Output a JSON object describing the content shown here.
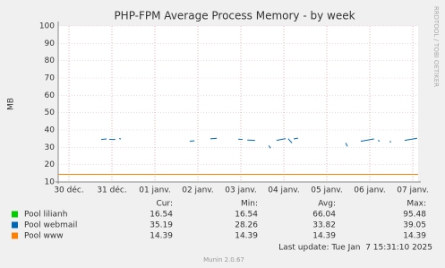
{
  "chart_data": {
    "type": "line",
    "title": "PHP-FPM Average Process Memory - by week",
    "y_label": "MB",
    "side_label": "RRDTOOL / TOBI OETIKER",
    "x": [
      -0.25,
      0.75,
      0.875,
      0.9,
      0.94,
      1.08,
      1.12,
      1.17,
      1.21,
      2.0,
      2.81,
      2.92,
      3.1,
      3.29,
      3.44,
      3.7,
      3.94,
      4.04,
      4.1,
      4.15,
      4.33,
      4.5,
      4.65,
      4.69,
      4.75,
      4.83,
      5.04,
      5.07,
      5.1,
      5.19,
      5.21,
      5.23,
      5.33,
      6.0,
      6.44,
      6.48,
      6.6,
      6.79,
      7.1,
      7.15,
      7.19,
      7.23,
      7.35,
      7.46,
      7.5,
      7.65,
      7.81,
      8.1,
      8.125
    ],
    "series": [
      {
        "name": "Pool lilianh",
        "color": "#00cc00",
        "values": [
          null,
          null,
          null,
          null,
          null,
          null,
          null,
          null,
          null,
          null,
          null,
          null,
          null,
          null,
          null,
          null,
          null,
          null,
          null,
          null,
          null,
          null,
          null,
          null,
          null,
          null,
          null,
          null,
          null,
          null,
          null,
          null,
          null,
          null,
          null,
          null,
          null,
          null,
          null,
          null,
          null,
          null,
          null,
          null,
          null,
          null,
          null,
          null,
          null
        ],
        "stats": [
          16.54,
          16.54,
          66.04,
          95.48
        ]
      },
      {
        "name": "Pool webmail",
        "color": "#0066b3",
        "values": [
          null,
          34.5,
          34.8,
          null,
          34.6,
          34.5,
          null,
          35,
          34.8,
          null,
          33.4,
          33.8,
          null,
          34.9,
          35.2,
          null,
          34.7,
          34.5,
          null,
          34.2,
          34.0,
          null,
          31,
          29.5,
          null,
          34,
          35,
          null,
          35,
          32.5,
          null,
          34.8,
          35.3,
          null,
          32.5,
          30.5,
          null,
          33.5,
          34.8,
          null,
          34,
          33.5,
          null,
          33.2,
          33.2,
          null,
          34,
          35.19,
          null
        ],
        "stats": [
          35.19,
          28.26,
          33.82,
          39.05
        ]
      },
      {
        "name": "Pool www",
        "color": "#ff8000",
        "values": [
          14.39,
          14.39,
          14.39,
          14.39,
          14.39,
          14.39,
          14.39,
          14.39,
          14.39,
          14.39,
          14.39,
          14.39,
          14.39,
          14.39,
          14.39,
          14.39,
          14.39,
          14.39,
          14.39,
          14.39,
          14.39,
          14.39,
          14.39,
          14.39,
          14.39,
          14.39,
          14.39,
          14.39,
          14.39,
          14.39,
          14.39,
          14.39,
          14.39,
          14.39,
          14.39,
          14.39,
          14.39,
          14.39,
          14.39,
          14.39,
          14.39,
          14.39,
          14.39,
          14.39,
          14.39,
          14.39,
          14.39,
          14.39,
          14.39
        ],
        "stats": [
          14.39,
          14.39,
          14.39,
          14.39
        ]
      }
    ],
    "legend_headers": [
      "Cur:",
      "Min:",
      "Avg:",
      "Max:"
    ],
    "xlim": [
      -0.25,
      8.125
    ],
    "xticks": [
      {
        "value": 0,
        "label": "30 déc."
      },
      {
        "value": 1,
        "label": "31 déc."
      },
      {
        "value": 2,
        "label": "01 janv."
      },
      {
        "value": 3,
        "label": "02 janv."
      },
      {
        "value": 4,
        "label": "03 janv."
      },
      {
        "value": 5,
        "label": "04 janv."
      },
      {
        "value": 6,
        "label": "05 janv."
      },
      {
        "value": 7,
        "label": "06 janv."
      },
      {
        "value": 8,
        "label": "07 janv."
      }
    ],
    "ylim": [
      10,
      100
    ],
    "yticks": [
      10,
      20,
      30,
      40,
      50,
      60,
      70,
      80,
      90,
      100
    ],
    "grid": true,
    "last_update": "Last update: Tue Jan  7 15:31:10 2025",
    "footer": "Munin 2.0.67"
  }
}
